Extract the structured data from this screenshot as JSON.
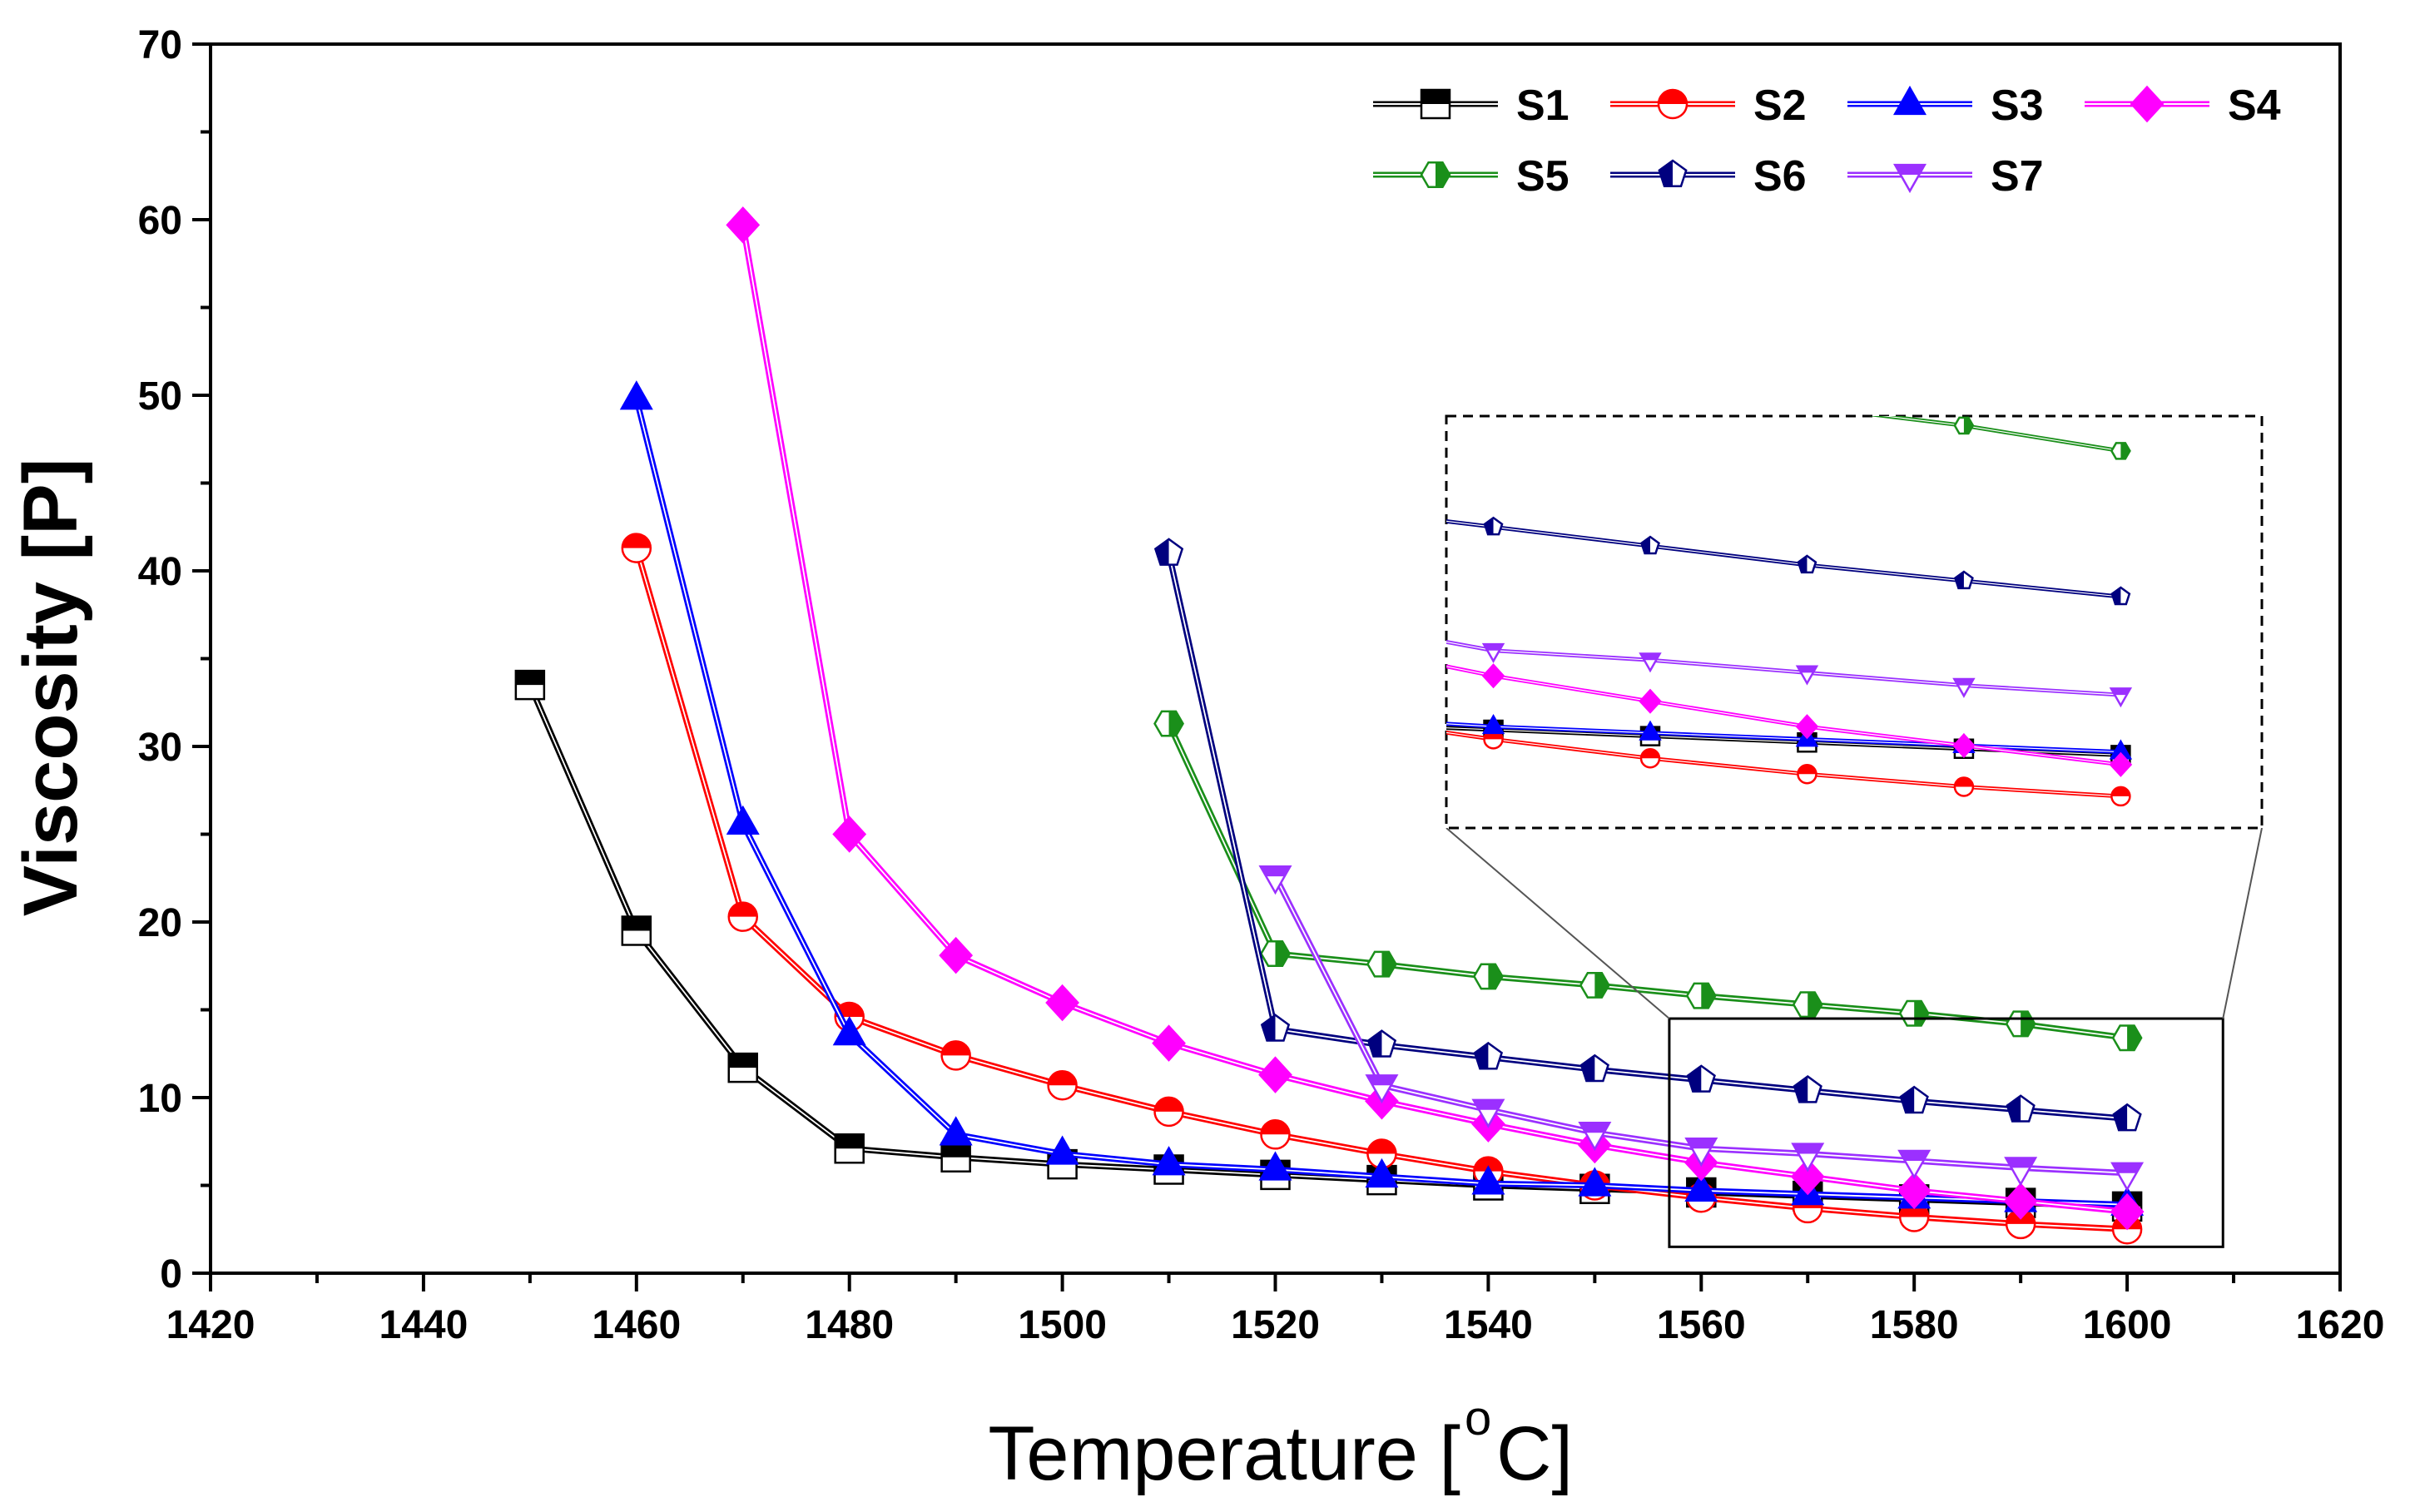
{
  "chart_data": {
    "type": "line",
    "xlabel": "Temperature [",
    "xlabel_sup": "o",
    "xlabel_tail": "C]",
    "ylabel": "Viscosity [P]",
    "xlim": [
      1420,
      1620
    ],
    "ylim": [
      0,
      70
    ],
    "x_ticks": [
      "1420",
      "1440",
      "1460",
      "1480",
      "1500",
      "1520",
      "1540",
      "1560",
      "1580",
      "1600",
      "1620"
    ],
    "y_ticks": [
      "0",
      "10",
      "20",
      "30",
      "40",
      "50",
      "60",
      "70"
    ],
    "grid": false,
    "legend_placement": "top-right",
    "series": [
      {
        "name": "S1",
        "color": "#000000",
        "marker": "square",
        "x": [
          1450,
          1460,
          1470,
          1480,
          1490,
          1500,
          1510,
          1520,
          1530,
          1540,
          1550,
          1560,
          1570,
          1580,
          1590,
          1600
        ],
        "y": [
          33.5,
          19.5,
          11.7,
          7.1,
          6.6,
          6.2,
          5.9,
          5.6,
          5.3,
          5.0,
          4.8,
          4.6,
          4.4,
          4.2,
          4.0,
          3.8
        ]
      },
      {
        "name": "S2",
        "color": "#ff0000",
        "marker": "circle",
        "x": [
          1460,
          1470,
          1480,
          1490,
          1500,
          1510,
          1520,
          1530,
          1540,
          1550,
          1560,
          1570,
          1580,
          1590,
          1600
        ],
        "y": [
          41.3,
          20.3,
          14.6,
          12.4,
          10.7,
          9.2,
          7.9,
          6.8,
          5.8,
          5.0,
          4.3,
          3.7,
          3.2,
          2.8,
          2.5
        ]
      },
      {
        "name": "S3",
        "color": "#0000ff",
        "marker": "triangle",
        "x": [
          1460,
          1470,
          1480,
          1490,
          1500,
          1510,
          1520,
          1530,
          1540,
          1550,
          1560,
          1570,
          1580,
          1590,
          1600
        ],
        "y": [
          49.8,
          25.6,
          13.6,
          7.9,
          6.8,
          6.2,
          5.9,
          5.5,
          5.1,
          5.0,
          4.7,
          4.5,
          4.3,
          4.1,
          3.9
        ]
      },
      {
        "name": "S4",
        "color": "#ff00ff",
        "marker": "diamond",
        "x": [
          1470,
          1480,
          1490,
          1500,
          1510,
          1520,
          1530,
          1540,
          1550,
          1560,
          1570,
          1580,
          1590,
          1600
        ],
        "y": [
          59.7,
          25.0,
          18.1,
          15.4,
          13.1,
          11.3,
          9.8,
          8.5,
          7.3,
          6.3,
          5.5,
          4.7,
          4.1,
          3.5
        ]
      },
      {
        "name": "S5",
        "color": "#1a8f1a",
        "marker": "hexagon",
        "x": [
          1510,
          1520,
          1530,
          1540,
          1550,
          1560,
          1570,
          1580,
          1590,
          1600
        ],
        "y": [
          31.3,
          18.2,
          17.6,
          16.9,
          16.4,
          15.8,
          15.3,
          14.8,
          14.2,
          13.4
        ]
      },
      {
        "name": "S6",
        "color": "#00007f",
        "marker": "pentagon",
        "x": [
          1510,
          1520,
          1530,
          1540,
          1550,
          1560,
          1570,
          1580,
          1590,
          1600
        ],
        "y": [
          41.0,
          13.9,
          13.0,
          12.3,
          11.6,
          11.0,
          10.4,
          9.8,
          9.3,
          8.8
        ]
      },
      {
        "name": "S7",
        "color": "#9b30ff",
        "marker": "invtriangle",
        "x": [
          1520,
          1530,
          1540,
          1550,
          1560,
          1570,
          1580,
          1590,
          1600
        ],
        "y": [
          22.6,
          10.7,
          9.3,
          8.0,
          7.1,
          6.8,
          6.4,
          6.0,
          5.7
        ]
      }
    ],
    "inset": {
      "zoom_region_x": [
        1557,
        1609
      ],
      "zoom_region_y": [
        1.5,
        14.5
      ]
    }
  }
}
